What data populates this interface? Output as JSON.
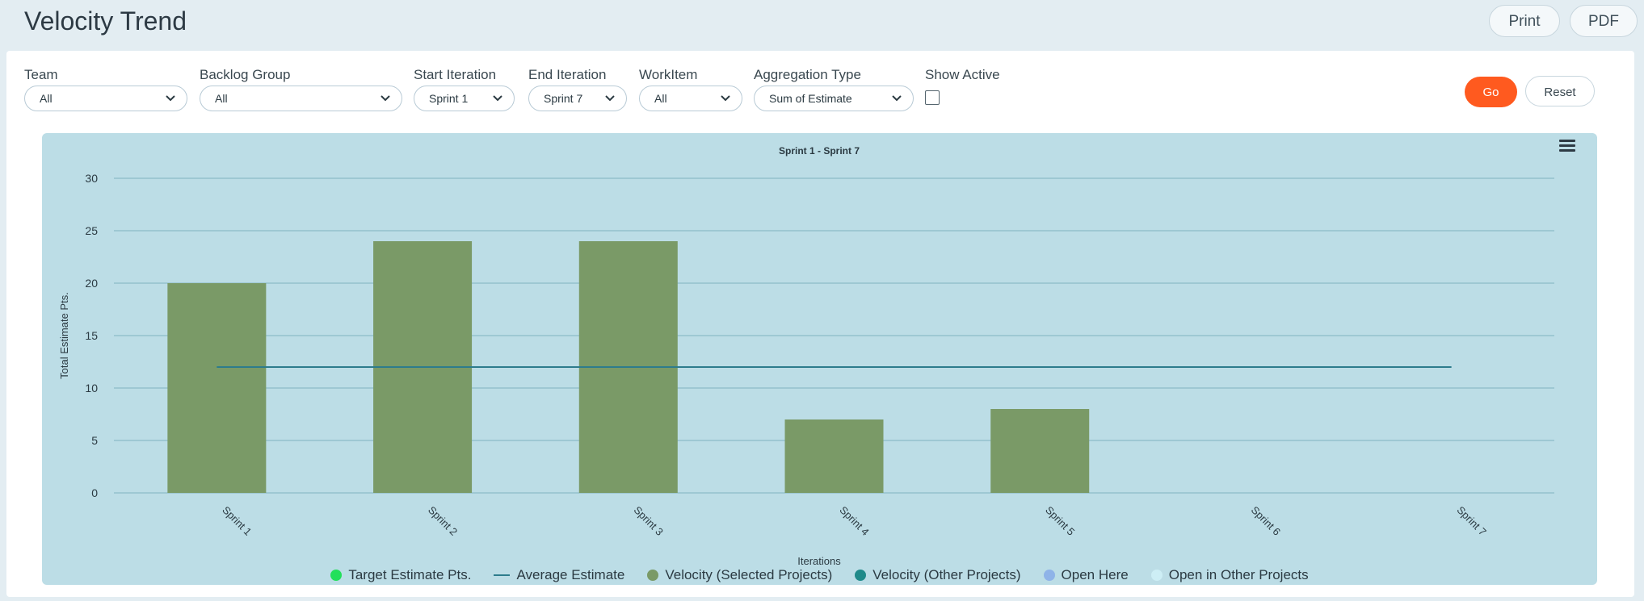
{
  "header": {
    "title": "Velocity Trend",
    "print_label": "Print",
    "pdf_label": "PDF"
  },
  "filters": {
    "team": {
      "label": "Team",
      "value": "All"
    },
    "backlog_group": {
      "label": "Backlog Group",
      "value": "All"
    },
    "start_iteration": {
      "label": "Start Iteration",
      "value": "Sprint 1"
    },
    "end_iteration": {
      "label": "End Iteration",
      "value": "Sprint 7"
    },
    "workitem": {
      "label": "WorkItem",
      "value": "All"
    },
    "aggregation_type": {
      "label": "Aggregation Type",
      "value": "Sum of Estimate"
    },
    "show_active": {
      "label": "Show Active",
      "checked": false
    }
  },
  "actions": {
    "go_label": "Go",
    "reset_label": "Reset"
  },
  "colors": {
    "velocity_bar": "#7a9a67",
    "average_line": "#2d7c8c",
    "chart_background": "#bcdde6",
    "grid": "#7fb3c0",
    "go_button": "#ff5a1f"
  },
  "chart_data": {
    "type": "bar",
    "title": "Sprint 1 - Sprint 7",
    "xlabel": "Iterations",
    "ylabel": "Total Estimate Pts.",
    "ylim": [
      0,
      30
    ],
    "yticks": [
      0,
      5,
      10,
      15,
      20,
      25,
      30
    ],
    "grid": true,
    "legend_position": "bottom",
    "categories": [
      "Sprint 1",
      "Sprint 2",
      "Sprint 3",
      "Sprint 4",
      "Sprint 5",
      "Sprint 6",
      "Sprint 7"
    ],
    "series": [
      {
        "name": "Velocity (Selected Projects)",
        "type": "bar",
        "color": "#7a9a67",
        "values": [
          20,
          24,
          24,
          7,
          8,
          0,
          0
        ]
      },
      {
        "name": "Average Estimate",
        "type": "line",
        "color": "#2d7c8c",
        "values": [
          12,
          12,
          12,
          12,
          12,
          12,
          12
        ]
      }
    ],
    "legend": [
      {
        "name": "Target Estimate Pts.",
        "marker": "dot",
        "color": "#22e05a"
      },
      {
        "name": "Average Estimate",
        "marker": "line",
        "color": "#2d7c8c"
      },
      {
        "name": "Velocity (Selected Projects)",
        "marker": "dot",
        "color": "#7a9a67"
      },
      {
        "name": "Velocity (Other Projects)",
        "marker": "dot",
        "color": "#1f8a8a"
      },
      {
        "name": "Open Here",
        "marker": "dot",
        "color": "#8fb3e8"
      },
      {
        "name": "Open in Other Projects",
        "marker": "dot",
        "color": "#cdeef5"
      }
    ]
  }
}
